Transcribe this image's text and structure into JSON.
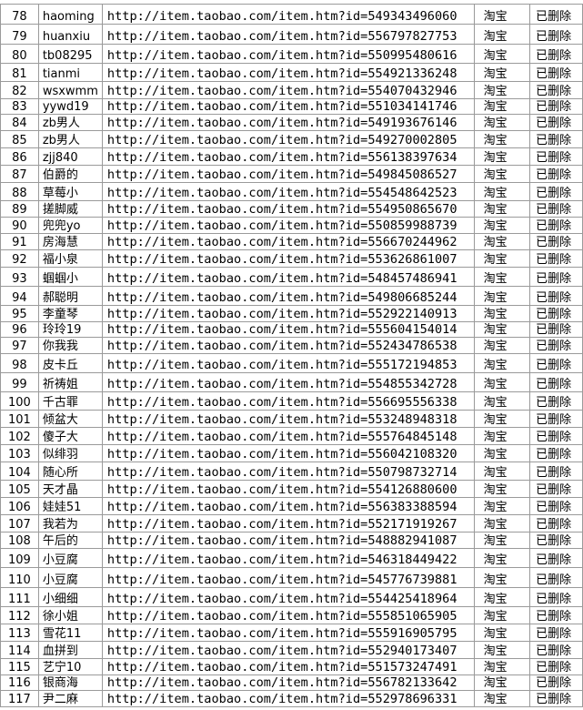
{
  "table": {
    "rows": [
      [
        "78",
        "haoming",
        "http://item.taobao.com/item.htm?id=549343496060",
        "淘宝",
        "已删除"
      ],
      [
        "79",
        "huanxiu",
        "http://item.taobao.com/item.htm?id=556797827753",
        "淘宝",
        "已删除"
      ],
      [
        "80",
        "tb08295",
        "http://item.taobao.com/item.htm?id=550995480616",
        "淘宝",
        "已删除"
      ],
      [
        "81",
        "tianmi",
        "http://item.taobao.com/item.htm?id=554921336248",
        "淘宝",
        "已删除"
      ],
      [
        "82",
        "wsxwmm",
        "http://item.taobao.com/item.htm?id=554070432946",
        "淘宝",
        "已删除"
      ],
      [
        "83",
        "yywd19",
        "http://item.taobao.com/item.htm?id=551034141746",
        "淘宝",
        "已删除"
      ],
      [
        "84",
        "zb男人",
        "http://item.taobao.com/item.htm?id=549193676146",
        "淘宝",
        "已删除"
      ],
      [
        "85",
        "zb男人",
        "http://item.taobao.com/item.htm?id=549270002805",
        "淘宝",
        "已删除"
      ],
      [
        "86",
        "zjj840",
        "http://item.taobao.com/item.htm?id=556138397634",
        "淘宝",
        "已删除"
      ],
      [
        "87",
        "伯爵的",
        "http://item.taobao.com/item.htm?id=549845086527",
        "淘宝",
        "已删除"
      ],
      [
        "88",
        "草莓小",
        "http://item.taobao.com/item.htm?id=554548642523",
        "淘宝",
        "已删除"
      ],
      [
        "89",
        "搓脚威",
        "http://item.taobao.com/item.htm?id=554950865670",
        "淘宝",
        "已删除"
      ],
      [
        "90",
        "兜兜yo",
        "http://item.taobao.com/item.htm?id=550859988739",
        "淘宝",
        "已删除"
      ],
      [
        "91",
        "房海慧",
        "http://item.taobao.com/item.htm?id=556670244962",
        "淘宝",
        "已删除"
      ],
      [
        "92",
        "福小泉",
        "http://item.taobao.com/item.htm?id=553626861007",
        "淘宝",
        "已删除"
      ],
      [
        "93",
        "蝈蝈小",
        "http://item.taobao.com/item.htm?id=548457486941",
        "淘宝",
        "已删除"
      ],
      [
        "94",
        "郝聪明",
        "http://item.taobao.com/item.htm?id=549806685244",
        "淘宝",
        "已删除"
      ],
      [
        "95",
        "李童琴",
        "http://item.taobao.com/item.htm?id=552922140913",
        "淘宝",
        "已删除"
      ],
      [
        "96",
        "玲玲19",
        "http://item.taobao.com/item.htm?id=555604154014",
        "淘宝",
        "已删除"
      ],
      [
        "97",
        "你我我",
        "http://item.taobao.com/item.htm?id=552434786538",
        "淘宝",
        "已删除"
      ],
      [
        "98",
        "皮卡丘",
        "http://item.taobao.com/item.htm?id=555172194853",
        "淘宝",
        "已删除"
      ],
      [
        "99",
        "祈祷姐",
        "http://item.taobao.com/item.htm?id=554855342728",
        "淘宝",
        "已删除"
      ],
      [
        "100",
        "千古罪",
        "http://item.taobao.com/item.htm?id=556695556338",
        "淘宝",
        "已删除"
      ],
      [
        "101",
        "倾盆大",
        "http://item.taobao.com/item.htm?id=553248948318",
        "淘宝",
        "已删除"
      ],
      [
        "102",
        "傻子大",
        "http://item.taobao.com/item.htm?id=555764845148",
        "淘宝",
        "已删除"
      ],
      [
        "103",
        "似绯羽",
        "http://item.taobao.com/item.htm?id=556042108320",
        "淘宝",
        "已删除"
      ],
      [
        "104",
        "随心所",
        "http://item.taobao.com/item.htm?id=550798732714",
        "淘宝",
        "已删除"
      ],
      [
        "105",
        "天才晶",
        "http://item.taobao.com/item.htm?id=554126880600",
        "淘宝",
        "已删除"
      ],
      [
        "106",
        "娃娃51",
        "http://item.taobao.com/item.htm?id=556383388594",
        "淘宝",
        "已删除"
      ],
      [
        "107",
        "我若为",
        "http://item.taobao.com/item.htm?id=552171919267",
        "淘宝",
        "已删除"
      ],
      [
        "108",
        "午后的",
        "http://item.taobao.com/item.htm?id=548882941087",
        "淘宝",
        "已删除"
      ],
      [
        "109",
        "小豆腐",
        "http://item.taobao.com/item.htm?id=546318449422",
        "淘宝",
        "已删除"
      ],
      [
        "110",
        "小豆腐",
        "http://item.taobao.com/item.htm?id=545776739881",
        "淘宝",
        "已删除"
      ],
      [
        "111",
        "小细细",
        "http://item.taobao.com/item.htm?id=554425418964",
        "淘宝",
        "已删除"
      ],
      [
        "112",
        "徐小姐",
        "http://item.taobao.com/item.htm?id=555851065905",
        "淘宝",
        "已删除"
      ],
      [
        "113",
        "雪花11",
        "http://item.taobao.com/item.htm?id=555916905795",
        "淘宝",
        "已删除"
      ],
      [
        "114",
        "血拼到",
        "http://item.taobao.com/item.htm?id=552940173407",
        "淘宝",
        "已删除"
      ],
      [
        "115",
        "艺宁10",
        "http://item.taobao.com/item.htm?id=551573247491",
        "淘宝",
        "已删除"
      ],
      [
        "116",
        "银商海",
        "http://item.taobao.com/item.htm?id=556782133642",
        "淘宝",
        "已删除"
      ],
      [
        "117",
        "尹二麻",
        "http://item.taobao.com/item.htm?id=552978696331",
        "淘宝",
        "已删除"
      ]
    ]
  }
}
